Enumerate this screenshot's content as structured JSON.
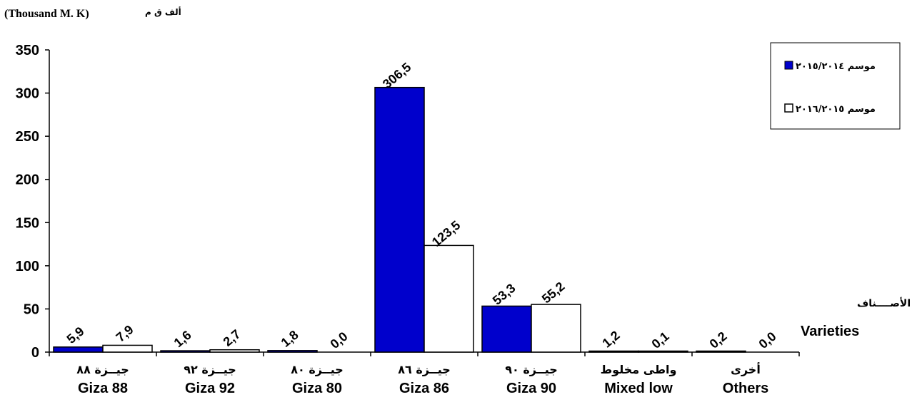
{
  "chart_data": {
    "type": "bar",
    "unit_label_en": "(Thousand M. K)",
    "unit_label_ar": "ألف ق م",
    "xlabel_ar": "الأصــــناف",
    "xlabel_en": "Varieties",
    "ylim": [
      0,
      350
    ],
    "yticks": [
      "0",
      "50",
      "100",
      "150",
      "200",
      "250",
      "300",
      "350"
    ],
    "categories_ar": [
      "جيــزة ٨٨",
      "جيــزة ٩٢",
      "جيــزة ٨٠",
      "جيــزة ٨٦",
      "جيــزة ٩٠",
      "واطى مخلوط",
      "أخرى"
    ],
    "categories": [
      "Giza 88",
      "Giza 92",
      "Giza 80",
      "Giza 86",
      "Giza 90",
      "Mixed low",
      "Others"
    ],
    "series": [
      {
        "name": "موسم ٢٠١٥/٢٠١٤",
        "color": "#0000cc",
        "values": [
          5.9,
          1.6,
          1.8,
          306.5,
          53.3,
          1.2,
          0.2
        ],
        "labels": [
          "5,9",
          "1,6",
          "1,8",
          "306,5",
          "53,3",
          "1,2",
          "0,2"
        ]
      },
      {
        "name": "موسم ٢٠١٦/٢٠١٥",
        "color": "#ffffff",
        "values": [
          7.9,
          2.7,
          0.0,
          123.5,
          55.2,
          0.1,
          0.0
        ],
        "labels": [
          "7,9",
          "2,7",
          "0,0",
          "123,5",
          "55,2",
          "0,1",
          "0,0"
        ]
      }
    ],
    "legend_position": "top-right",
    "grid": false
  }
}
